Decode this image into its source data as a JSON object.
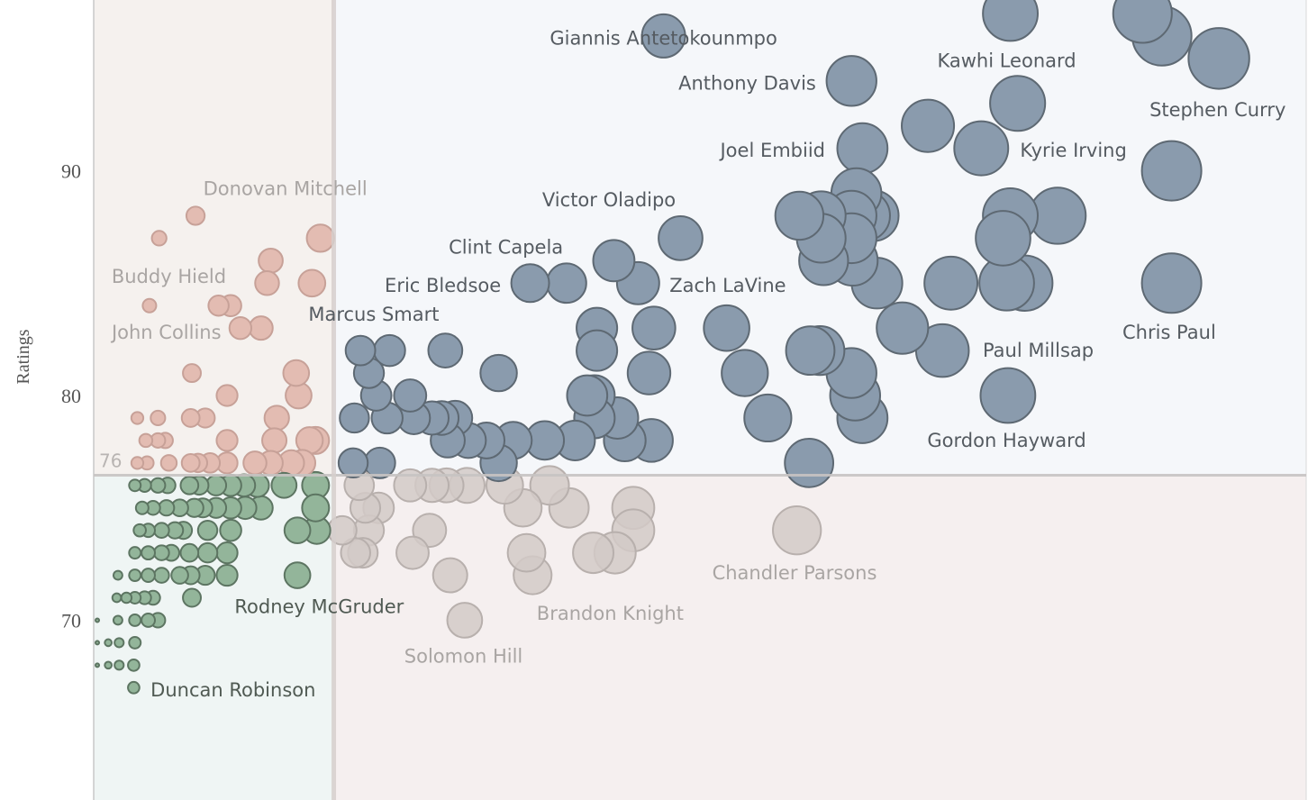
{
  "chart_data": {
    "type": "scatter",
    "title": "",
    "xlabel": "",
    "ylabel": "Ratings",
    "xlim": [
      0,
      100
    ],
    "ylim": [
      62,
      97.6
    ],
    "y_ticks": [
      "90",
      "80",
      "70"
    ],
    "y_tick_values": [
      90,
      80,
      70
    ],
    "x_axis_visible": false,
    "grid": false,
    "bubble_size": "grows with x",
    "reference_lines": {
      "x": 19.8,
      "y": 76.45,
      "y_label": "76"
    },
    "quadrant_colors": {
      "top_left": {
        "fill": "#e3bcb2",
        "stroke": "#c7a198",
        "background": "#f5f1ee"
      },
      "top_right": {
        "fill": "#8a9bad",
        "stroke": "#5e6973",
        "background": "#f5f7fa"
      },
      "bottom_left": {
        "fill": "#93b59a",
        "stroke": "#5d7562",
        "background": "#eff5f4"
      },
      "bottom_right": {
        "fill": "#d2cac7",
        "stroke": "#b8b0ad",
        "background": "#f5efef"
      }
    },
    "points": [
      [
        8.4,
        88
      ],
      [
        5.4,
        87
      ],
      [
        18.7,
        87
      ],
      [
        14.6,
        86
      ],
      [
        14.3,
        85
      ],
      [
        18.0,
        85
      ],
      [
        4.6,
        84
      ],
      [
        10.3,
        84
      ],
      [
        11.3,
        84
      ],
      [
        12.1,
        83
      ],
      [
        13.8,
        83
      ],
      [
        8.1,
        81
      ],
      [
        16.7,
        81
      ],
      [
        11.0,
        80
      ],
      [
        16.9,
        80
      ],
      [
        3.6,
        79
      ],
      [
        5.3,
        79
      ],
      [
        8.0,
        79
      ],
      [
        9.2,
        79
      ],
      [
        15.1,
        79
      ],
      [
        4.3,
        78
      ],
      [
        5.3,
        78
      ],
      [
        5.9,
        78
      ],
      [
        11.0,
        78
      ],
      [
        14.9,
        78
      ],
      [
        17.8,
        78
      ],
      [
        18.3,
        78
      ],
      [
        3.6,
        77
      ],
      [
        4.4,
        77
      ],
      [
        6.2,
        77
      ],
      [
        8.0,
        77
      ],
      [
        8.6,
        77
      ],
      [
        9.6,
        77
      ],
      [
        11.0,
        77
      ],
      [
        13.3,
        77
      ],
      [
        14.6,
        77
      ],
      [
        16.3,
        77
      ],
      [
        17.2,
        77
      ],
      [
        3.4,
        76
      ],
      [
        4.2,
        76
      ],
      [
        5.3,
        76
      ],
      [
        6.1,
        76
      ],
      [
        7.9,
        76
      ],
      [
        8.7,
        76
      ],
      [
        10.1,
        76
      ],
      [
        11.3,
        76
      ],
      [
        12.4,
        76
      ],
      [
        13.5,
        76
      ],
      [
        15.7,
        76
      ],
      [
        18.3,
        76
      ],
      [
        4.0,
        75
      ],
      [
        4.9,
        75
      ],
      [
        6.0,
        75
      ],
      [
        7.1,
        75
      ],
      [
        8.3,
        75
      ],
      [
        9.0,
        75
      ],
      [
        10.1,
        75
      ],
      [
        11.3,
        75
      ],
      [
        12.5,
        75
      ],
      [
        13.8,
        75
      ],
      [
        18.3,
        75
      ],
      [
        3.8,
        74
      ],
      [
        4.5,
        74
      ],
      [
        5.6,
        74
      ],
      [
        6.7,
        74
      ],
      [
        7.4,
        74
      ],
      [
        9.4,
        74
      ],
      [
        11.3,
        74
      ],
      [
        16.8,
        74
      ],
      [
        18.4,
        74
      ],
      [
        3.4,
        73
      ],
      [
        4.5,
        73
      ],
      [
        5.6,
        73
      ],
      [
        6.4,
        73
      ],
      [
        7.9,
        73
      ],
      [
        9.4,
        73
      ],
      [
        11.0,
        73
      ],
      [
        2.0,
        72
      ],
      [
        3.4,
        72
      ],
      [
        4.5,
        72
      ],
      [
        5.6,
        72
      ],
      [
        7.1,
        72
      ],
      [
        8.0,
        72
      ],
      [
        9.2,
        72
      ],
      [
        11.0,
        72
      ],
      [
        16.8,
        72
      ],
      [
        1.9,
        71
      ],
      [
        2.7,
        71
      ],
      [
        3.4,
        71
      ],
      [
        4.2,
        71
      ],
      [
        4.9,
        71
      ],
      [
        8.1,
        71
      ],
      [
        0.3,
        70
      ],
      [
        2.0,
        70
      ],
      [
        3.4,
        70
      ],
      [
        4.5,
        70
      ],
      [
        5.3,
        70
      ],
      [
        0.3,
        69
      ],
      [
        1.2,
        69
      ],
      [
        2.1,
        69
      ],
      [
        3.4,
        69
      ],
      [
        0.3,
        68
      ],
      [
        1.2,
        68
      ],
      [
        2.1,
        68
      ],
      [
        3.3,
        68
      ],
      [
        3.3,
        67
      ],
      [
        21.9,
        76
      ],
      [
        26.1,
        76
      ],
      [
        27.9,
        76
      ],
      [
        29.1,
        76
      ],
      [
        30.8,
        76
      ],
      [
        33.9,
        76
      ],
      [
        37.6,
        76
      ],
      [
        22.4,
        75
      ],
      [
        23.5,
        75
      ],
      [
        35.4,
        75
      ],
      [
        39.2,
        75
      ],
      [
        44.5,
        75
      ],
      [
        20.5,
        74
      ],
      [
        22.7,
        74
      ],
      [
        27.7,
        74
      ],
      [
        44.5,
        74
      ],
      [
        58.0,
        74
      ],
      [
        21.6,
        73
      ],
      [
        22.2,
        73
      ],
      [
        26.3,
        73
      ],
      [
        35.7,
        73
      ],
      [
        41.2,
        73
      ],
      [
        43.0,
        73
      ],
      [
        29.4,
        72
      ],
      [
        36.2,
        72
      ],
      [
        30.6,
        70
      ],
      [
        75.6,
        97
      ],
      [
        86.5,
        97
      ],
      [
        88.1,
        96
      ],
      [
        47.0,
        96
      ],
      [
        92.8,
        95
      ],
      [
        62.5,
        94
      ],
      [
        76.2,
        93
      ],
      [
        68.8,
        92
      ],
      [
        73.2,
        91
      ],
      [
        63.4,
        91
      ],
      [
        88.9,
        90
      ],
      [
        62.9,
        89
      ],
      [
        58.2,
        88
      ],
      [
        60.0,
        88
      ],
      [
        62.5,
        88
      ],
      [
        63.6,
        88
      ],
      [
        64.3,
        88
      ],
      [
        75.6,
        88
      ],
      [
        79.5,
        88
      ],
      [
        48.4,
        87
      ],
      [
        60.0,
        87
      ],
      [
        62.5,
        87
      ],
      [
        75.0,
        87
      ],
      [
        42.9,
        86
      ],
      [
        60.2,
        86
      ],
      [
        62.6,
        86
      ],
      [
        36.0,
        85
      ],
      [
        39.0,
        85
      ],
      [
        44.9,
        85
      ],
      [
        64.6,
        85
      ],
      [
        70.7,
        85
      ],
      [
        75.3,
        85
      ],
      [
        76.8,
        85
      ],
      [
        88.9,
        85
      ],
      [
        41.5,
        83
      ],
      [
        46.2,
        83
      ],
      [
        52.2,
        83
      ],
      [
        66.7,
        83
      ],
      [
        22.0,
        82
      ],
      [
        24.4,
        82
      ],
      [
        29.0,
        82
      ],
      [
        41.5,
        82
      ],
      [
        59.1,
        82
      ],
      [
        59.9,
        82
      ],
      [
        70.0,
        82
      ],
      [
        22.7,
        81
      ],
      [
        33.4,
        81
      ],
      [
        45.8,
        81
      ],
      [
        53.7,
        81
      ],
      [
        62.5,
        81
      ],
      [
        23.3,
        80
      ],
      [
        26.1,
        80
      ],
      [
        40.7,
        80
      ],
      [
        41.3,
        80
      ],
      [
        62.8,
        80
      ],
      [
        75.4,
        80
      ],
      [
        21.5,
        79
      ],
      [
        24.2,
        79
      ],
      [
        26.4,
        79
      ],
      [
        27.9,
        79
      ],
      [
        28.7,
        79
      ],
      [
        29.8,
        79
      ],
      [
        41.3,
        79
      ],
      [
        43.2,
        79
      ],
      [
        55.6,
        79
      ],
      [
        63.4,
        79
      ],
      [
        29.2,
        78
      ],
      [
        30.9,
        78
      ],
      [
        32.4,
        78
      ],
      [
        34.6,
        78
      ],
      [
        37.2,
        78
      ],
      [
        39.7,
        78
      ],
      [
        43.8,
        78
      ],
      [
        46.0,
        78
      ],
      [
        21.4,
        77
      ],
      [
        23.6,
        77
      ],
      [
        33.4,
        77
      ],
      [
        59.0,
        77
      ]
    ],
    "annotations": [
      {
        "text": "Giannis Antetokounmpo",
        "x": 47.0,
        "y": 95.9
      },
      {
        "text": "Kawhi Leonard",
        "x": 75.3,
        "y": 94.9
      },
      {
        "text": "Anthony Davis",
        "x": 53.9,
        "y": 93.9
      },
      {
        "text": "Stephen Curry",
        "x": 92.7,
        "y": 92.7
      },
      {
        "text": "Joel Embiid",
        "x": 56.0,
        "y": 90.9
      },
      {
        "text": "Kyrie Irving",
        "x": 80.8,
        "y": 90.9
      },
      {
        "text": "Donovan Mitchell",
        "x": 15.8,
        "y": 89.2
      },
      {
        "text": "Victor Oladipo",
        "x": 42.5,
        "y": 88.7
      },
      {
        "text": "Clint Capela",
        "x": 34.0,
        "y": 86.6
      },
      {
        "text": "Buddy Hield",
        "x": 6.2,
        "y": 85.3
      },
      {
        "text": "Eric Bledsoe",
        "x": 28.8,
        "y": 84.9
      },
      {
        "text": "Zach LaVine",
        "x": 52.3,
        "y": 84.9
      },
      {
        "text": "Marcus Smart",
        "x": 23.1,
        "y": 83.6
      },
      {
        "text": "John Collins",
        "x": 6.0,
        "y": 82.8
      },
      {
        "text": "Chris Paul",
        "x": 88.7,
        "y": 82.8
      },
      {
        "text": "Paul Millsap",
        "x": 77.9,
        "y": 82.0
      },
      {
        "text": "Gordon Hayward",
        "x": 75.3,
        "y": 78.0
      },
      {
        "text": "Rodney McGruder",
        "x": 18.6,
        "y": 70.6
      },
      {
        "text": "Brandon Knight",
        "x": 42.6,
        "y": 70.3
      },
      {
        "text": "Chandler Parsons",
        "x": 57.8,
        "y": 72.1
      },
      {
        "text": "Solomon Hill",
        "x": 30.5,
        "y": 68.4
      },
      {
        "text": "Duncan Robinson",
        "x": 11.5,
        "y": 66.9
      }
    ]
  }
}
